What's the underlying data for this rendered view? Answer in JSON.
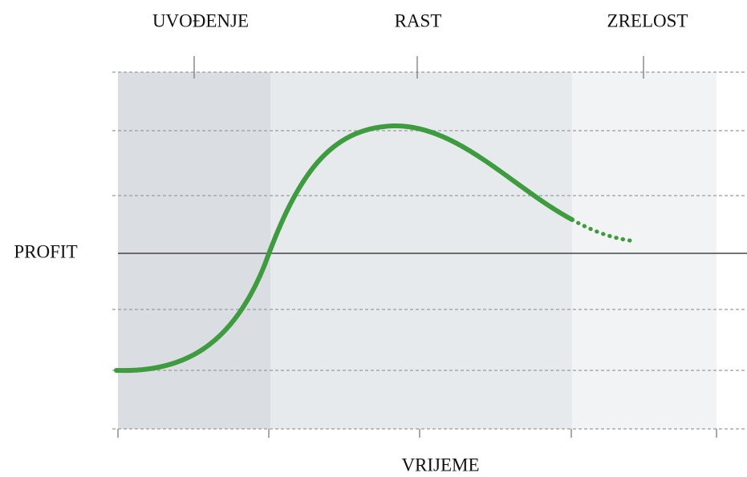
{
  "phases": [
    "UVOĐENJE",
    "RAST",
    "ZRELOST"
  ],
  "axes": {
    "y_label": "PROFIT",
    "x_label": "VRIJEME"
  }
}
